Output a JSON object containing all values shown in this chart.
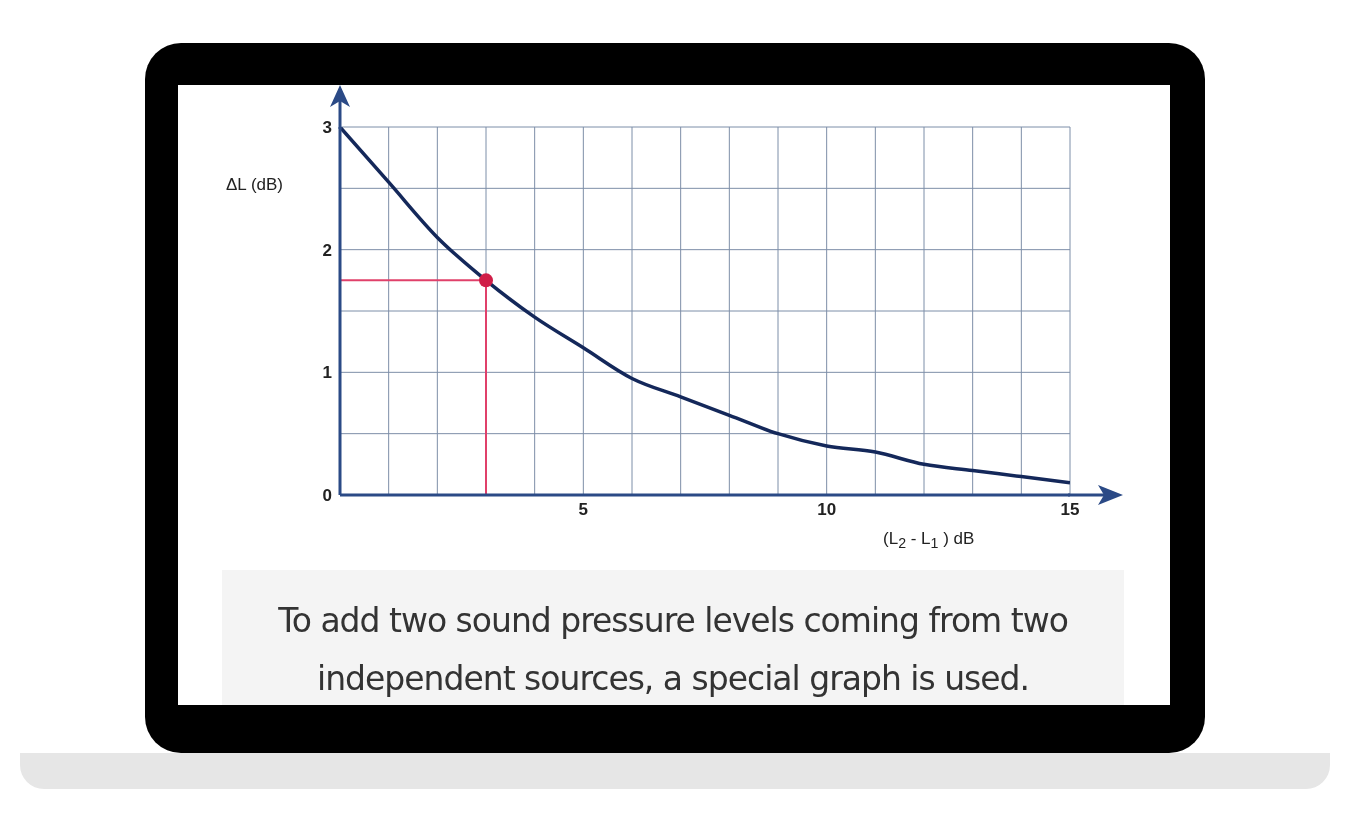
{
  "chart_data": {
    "type": "line",
    "xlabel": "(L$_{2}$ - L$_{1}$ ) dB",
    "ylabel": "ΔL (dB)",
    "x": [
      0,
      1,
      2,
      3,
      4,
      5,
      6,
      7,
      8,
      9,
      10,
      11,
      12,
      13,
      14,
      15
    ],
    "series": [
      {
        "color": "#14285a",
        "values": [
          3.0,
          2.55,
          2.1,
          1.75,
          1.45,
          1.2,
          0.95,
          0.8,
          0.65,
          0.5,
          0.4,
          0.35,
          0.25,
          0.2,
          0.15,
          0.1
        ]
      },
      {
        "type": "scatter",
        "marker": "circle",
        "color": "#d01e48",
        "x": [
          3
        ],
        "values": [
          1.75
        ]
      }
    ],
    "ref_lines": [
      {
        "axis": "x",
        "value": 3,
        "label": null,
        "color": "#e0406a"
      },
      {
        "axis": "y",
        "value": 1.75,
        "label": null,
        "color": "#e0406a"
      }
    ],
    "xlim": [
      0,
      15
    ],
    "xticks": [
      {
        "value": 0,
        "label": null
      },
      {
        "value": 1,
        "label": null
      },
      {
        "value": 2,
        "label": null
      },
      {
        "value": 3,
        "label": null
      },
      {
        "value": 4,
        "label": null
      },
      5,
      {
        "value": 6,
        "label": null
      },
      {
        "value": 7,
        "label": null
      },
      {
        "value": 8,
        "label": null
      },
      {
        "value": 9,
        "label": null
      },
      10,
      {
        "value": 11,
        "label": null
      },
      {
        "value": 12,
        "label": null
      },
      {
        "value": 13,
        "label": null
      },
      {
        "value": 14,
        "label": null
      },
      15
    ],
    "ylim": [
      0,
      3
    ],
    "yticks": [
      0,
      {
        "value": 0.5,
        "label": null
      },
      1,
      {
        "value": 1.5,
        "label": null
      },
      2,
      {
        "value": 2.5,
        "label": null
      },
      3
    ],
    "grid": true,
    "annotations": [
      "To add two sound pressure levels coming from two independent sources, a special graph is used."
    ]
  }
}
